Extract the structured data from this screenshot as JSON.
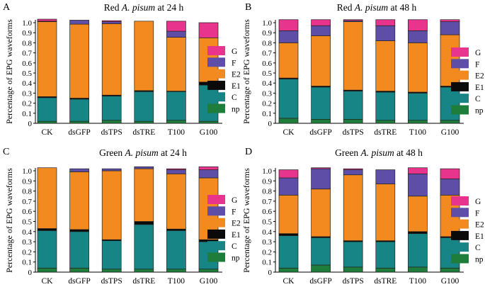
{
  "figure": {
    "y_axis_label": "Percentage of EPG waveforms"
  },
  "colors": {
    "np": "#1e7d3a",
    "C": "#178585",
    "E1": "#0a0a0a",
    "E2": "#f28a1f",
    "F": "#5f4ea8",
    "G": "#e8348c"
  },
  "legend_order": [
    "G",
    "F",
    "E2",
    "E1",
    "C",
    "np"
  ],
  "chart_data": [
    {
      "type": "bar",
      "stacked": true,
      "panel_letter": "A",
      "title": [
        "Red ",
        "A. pisum",
        " at 24 h"
      ],
      "categories": [
        "CK",
        "dsGFP",
        "dsTPS",
        "dsTRE",
        "T100",
        "G100"
      ],
      "ylim": [
        0,
        1.0
      ],
      "yticks": [
        "0",
        "0.1",
        "0.2",
        "0.3",
        "0.4",
        "0.5",
        "0.6",
        "0.7",
        "0.8",
        "0.9",
        "1.0"
      ],
      "series": [
        {
          "name": "np",
          "values": [
            0.02,
            0.02,
            0.03,
            0.02,
            0.03,
            0.02
          ]
        },
        {
          "name": "C",
          "values": [
            0.235,
            0.22,
            0.24,
            0.295,
            0.285,
            0.36
          ]
        },
        {
          "name": "E1",
          "values": [
            0.01,
            0.01,
            0.01,
            0.01,
            0.005,
            0.03
          ]
        },
        {
          "name": "E2",
          "values": [
            0.745,
            0.735,
            0.71,
            0.69,
            0.535,
            0.44
          ]
        },
        {
          "name": "F",
          "values": [
            0.005,
            0.04,
            0.02,
            0.0,
            0.06,
            0.0
          ]
        },
        {
          "name": "G",
          "values": [
            0.02,
            0.0,
            0.01,
            0.0,
            0.1,
            0.15
          ]
        }
      ]
    },
    {
      "type": "bar",
      "stacked": true,
      "panel_letter": "B",
      "title": [
        "Red ",
        "A. pisum",
        " at 48 h"
      ],
      "categories": [
        "CK",
        "dsGFP",
        "dsTPS",
        "dsTRE",
        "T100",
        "G100"
      ],
      "ylim": [
        0,
        1.0
      ],
      "yticks": [
        "0",
        "0.1",
        "0.2",
        "0.3",
        "0.4",
        "0.5",
        "0.6",
        "0.7",
        "0.8",
        "0.9",
        "1.0"
      ],
      "series": [
        {
          "name": "np",
          "values": [
            0.05,
            0.04,
            0.04,
            0.03,
            0.03,
            0.03
          ]
        },
        {
          "name": "C",
          "values": [
            0.39,
            0.32,
            0.28,
            0.28,
            0.27,
            0.33
          ]
        },
        {
          "name": "E1",
          "values": [
            0.01,
            0.01,
            0.01,
            0.01,
            0.01,
            0.01
          ]
        },
        {
          "name": "E2",
          "values": [
            0.35,
            0.5,
            0.68,
            0.5,
            0.49,
            0.51
          ]
        },
        {
          "name": "F",
          "values": [
            0.12,
            0.1,
            0.01,
            0.15,
            0.12,
            0.13
          ]
        },
        {
          "name": "G",
          "values": [
            0.11,
            0.06,
            0.01,
            0.06,
            0.11,
            0.02
          ]
        }
      ]
    },
    {
      "type": "bar",
      "stacked": true,
      "panel_letter": "C",
      "title": [
        "Green ",
        "A. pisum",
        " at 24 h"
      ],
      "categories": [
        "CK",
        "dsGFP",
        "dsTPS",
        "dsTRE",
        "T100",
        "G100"
      ],
      "ylim": [
        0,
        1.0
      ],
      "yticks": [
        "0",
        "0.1",
        "0.2",
        "0.3",
        "0.4",
        "0.5",
        "0.6",
        "0.7",
        "0.8",
        "0.9",
        "1.0"
      ],
      "series": [
        {
          "name": "np",
          "values": [
            0.04,
            0.04,
            0.03,
            0.03,
            0.03,
            0.03
          ]
        },
        {
          "name": "C",
          "values": [
            0.37,
            0.36,
            0.28,
            0.44,
            0.38,
            0.27
          ]
        },
        {
          "name": "E1",
          "values": [
            0.02,
            0.02,
            0.01,
            0.03,
            0.015,
            0.02
          ]
        },
        {
          "name": "E2",
          "values": [
            0.6,
            0.57,
            0.68,
            0.52,
            0.545,
            0.61
          ]
        },
        {
          "name": "F",
          "values": [
            0.0,
            0.03,
            0.02,
            0.02,
            0.04,
            0.08
          ]
        },
        {
          "name": "G",
          "values": [
            0.0,
            0.0,
            0.0,
            0.0,
            0.01,
            0.03
          ]
        }
      ]
    },
    {
      "type": "bar",
      "stacked": true,
      "panel_letter": "D",
      "title": [
        "Green ",
        "A. pisum",
        " at 48 h"
      ],
      "categories": [
        "CK",
        "dsGFP",
        "dsTPS",
        "dsTRE",
        "T100",
        "G100"
      ],
      "ylim": [
        0,
        1.0
      ],
      "yticks": [
        "0",
        "0.1",
        "0.2",
        "0.3",
        "0.4",
        "0.5",
        "0.6",
        "0.7",
        "0.8",
        "0.9",
        "1.0"
      ],
      "series": [
        {
          "name": "np",
          "values": [
            0.04,
            0.07,
            0.05,
            0.04,
            0.05,
            0.04
          ]
        },
        {
          "name": "C",
          "values": [
            0.32,
            0.27,
            0.25,
            0.26,
            0.33,
            0.3
          ]
        },
        {
          "name": "E1",
          "values": [
            0.02,
            0.01,
            0.01,
            0.01,
            0.02,
            0.01
          ]
        },
        {
          "name": "E2",
          "values": [
            0.38,
            0.47,
            0.65,
            0.56,
            0.35,
            0.41
          ]
        },
        {
          "name": "F",
          "values": [
            0.17,
            0.2,
            0.05,
            0.14,
            0.22,
            0.16
          ]
        },
        {
          "name": "G",
          "values": [
            0.08,
            0.01,
            0.01,
            0.0,
            0.06,
            0.1
          ]
        }
      ]
    }
  ]
}
